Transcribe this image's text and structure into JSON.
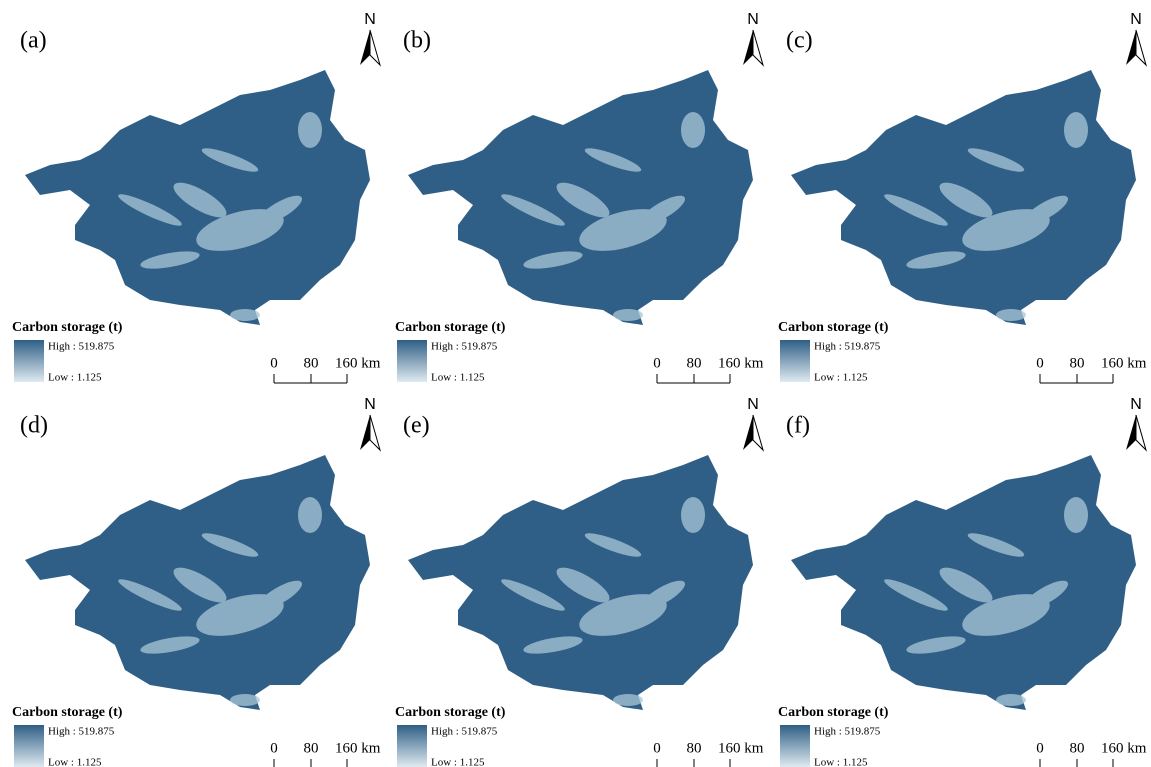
{
  "panels": [
    {
      "label": "(a)",
      "north": "N",
      "legend": {
        "title": "Carbon storage (t)",
        "high": "High : 519.875",
        "low": "Low : 1.125"
      },
      "scale": [
        "0",
        "80",
        "160 km"
      ]
    },
    {
      "label": "(b)",
      "north": "N",
      "legend": {
        "title": "Carbon storage (t)",
        "high": "High : 519.875",
        "low": "Low : 1.125"
      },
      "scale": [
        "0",
        "80",
        "160 km"
      ]
    },
    {
      "label": "(c)",
      "north": "N",
      "legend": {
        "title": "Carbon storage (t)",
        "high": "High : 519.875",
        "low": "Low : 1.125"
      },
      "scale": [
        "0",
        "80",
        "160 km"
      ]
    },
    {
      "label": "(d)",
      "north": "N",
      "legend": {
        "title": "Carbon storage (t)",
        "high": "High : 519.875",
        "low": "Low : 1.125"
      },
      "scale": [
        "0",
        "80",
        "160 km"
      ]
    },
    {
      "label": "(e)",
      "north": "N",
      "legend": {
        "title": "Carbon storage (t)",
        "high": "High : 519.875",
        "low": "Low : 1.125"
      },
      "scale": [
        "0",
        "80",
        "160 km"
      ]
    },
    {
      "label": "(f)",
      "north": "N",
      "legend": {
        "title": "Carbon storage (t)",
        "high": "High : 519.875",
        "low": "Low : 1.125"
      },
      "scale": [
        "0",
        "80",
        "160 km"
      ]
    }
  ]
}
